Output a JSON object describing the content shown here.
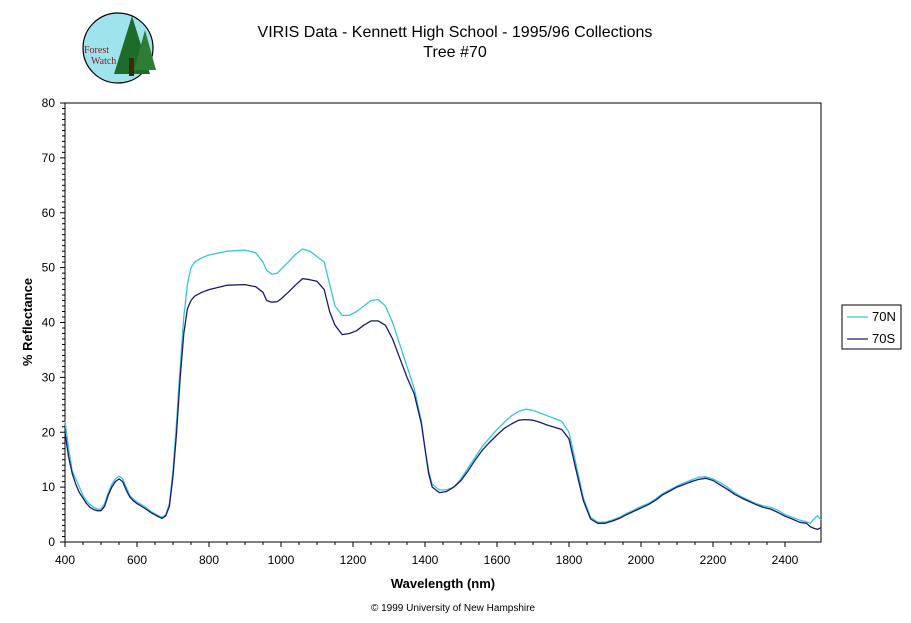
{
  "logo": {
    "line1": "Forest",
    "line2": "Watch"
  },
  "footer": {
    "copyright": "© 1999 University of New Hampshire"
  },
  "chart_data": {
    "type": "line",
    "title": "VIRIS Data - Kennett High School - 1995/96 Collections",
    "subtitle": "Tree #70",
    "xlabel": "Wavelength (nm)",
    "ylabel": "% Reflectance",
    "xlim": [
      400,
      2500
    ],
    "ylim": [
      0,
      80
    ],
    "xticks": [
      400,
      600,
      800,
      1000,
      1200,
      1400,
      1600,
      1800,
      2000,
      2200,
      2400
    ],
    "yticks": [
      0,
      10,
      20,
      30,
      40,
      50,
      60,
      70,
      80
    ],
    "grid": false,
    "legend_position": "right",
    "series": [
      {
        "name": "70N",
        "color": "#33c6d9",
        "points": [
          [
            400,
            22
          ],
          [
            410,
            17
          ],
          [
            420,
            13
          ],
          [
            430,
            11.5
          ],
          [
            440,
            10
          ],
          [
            450,
            8.5
          ],
          [
            460,
            7.5
          ],
          [
            470,
            6.8
          ],
          [
            480,
            6.3
          ],
          [
            490,
            6
          ],
          [
            500,
            6
          ],
          [
            510,
            7
          ],
          [
            520,
            9
          ],
          [
            530,
            10.5
          ],
          [
            540,
            11.5
          ],
          [
            550,
            12
          ],
          [
            560,
            11.5
          ],
          [
            570,
            10
          ],
          [
            580,
            8.5
          ],
          [
            590,
            7.8
          ],
          [
            600,
            7.3
          ],
          [
            620,
            6.5
          ],
          [
            640,
            5.5
          ],
          [
            660,
            4.8
          ],
          [
            670,
            4.5
          ],
          [
            680,
            5
          ],
          [
            690,
            7
          ],
          [
            700,
            13
          ],
          [
            710,
            22
          ],
          [
            720,
            32
          ],
          [
            730,
            41
          ],
          [
            740,
            47
          ],
          [
            750,
            50
          ],
          [
            760,
            51
          ],
          [
            780,
            51.8
          ],
          [
            800,
            52.3
          ],
          [
            850,
            53
          ],
          [
            900,
            53.2
          ],
          [
            930,
            52.7
          ],
          [
            950,
            51
          ],
          [
            960,
            49.5
          ],
          [
            975,
            48.8
          ],
          [
            990,
            49
          ],
          [
            1000,
            49.7
          ],
          [
            1020,
            51
          ],
          [
            1040,
            52.4
          ],
          [
            1060,
            53.4
          ],
          [
            1080,
            53
          ],
          [
            1100,
            52
          ],
          [
            1120,
            51
          ],
          [
            1135,
            47
          ],
          [
            1150,
            43
          ],
          [
            1170,
            41.3
          ],
          [
            1190,
            41.3
          ],
          [
            1210,
            42
          ],
          [
            1230,
            43
          ],
          [
            1250,
            44
          ],
          [
            1270,
            44.2
          ],
          [
            1290,
            43
          ],
          [
            1310,
            40
          ],
          [
            1330,
            36
          ],
          [
            1350,
            32
          ],
          [
            1370,
            28
          ],
          [
            1390,
            22
          ],
          [
            1400,
            17
          ],
          [
            1410,
            13
          ],
          [
            1420,
            10.5
          ],
          [
            1440,
            9.5
          ],
          [
            1460,
            9.5
          ],
          [
            1480,
            10
          ],
          [
            1500,
            11.5
          ],
          [
            1520,
            13.5
          ],
          [
            1540,
            15.5
          ],
          [
            1560,
            17.5
          ],
          [
            1580,
            19
          ],
          [
            1600,
            20.5
          ],
          [
            1620,
            21.8
          ],
          [
            1640,
            23
          ],
          [
            1660,
            23.8
          ],
          [
            1680,
            24.2
          ],
          [
            1700,
            24
          ],
          [
            1720,
            23.5
          ],
          [
            1740,
            23
          ],
          [
            1760,
            22.5
          ],
          [
            1780,
            22
          ],
          [
            1800,
            20
          ],
          [
            1820,
            14
          ],
          [
            1840,
            8
          ],
          [
            1860,
            4.5
          ],
          [
            1880,
            3.6
          ],
          [
            1900,
            3.6
          ],
          [
            1920,
            4
          ],
          [
            1940,
            4.5
          ],
          [
            1960,
            5.2
          ],
          [
            1980,
            5.8
          ],
          [
            2000,
            6.5
          ],
          [
            2020,
            7
          ],
          [
            2040,
            7.8
          ],
          [
            2060,
            8.8
          ],
          [
            2080,
            9.5
          ],
          [
            2100,
            10.2
          ],
          [
            2120,
            10.8
          ],
          [
            2140,
            11.3
          ],
          [
            2160,
            11.8
          ],
          [
            2180,
            11.9
          ],
          [
            2200,
            11.5
          ],
          [
            2220,
            10.8
          ],
          [
            2240,
            10
          ],
          [
            2260,
            9
          ],
          [
            2280,
            8.2
          ],
          [
            2300,
            7.6
          ],
          [
            2320,
            7
          ],
          [
            2340,
            6.6
          ],
          [
            2360,
            6.3
          ],
          [
            2380,
            5.8
          ],
          [
            2400,
            5
          ],
          [
            2420,
            4.5
          ],
          [
            2440,
            4
          ],
          [
            2460,
            3.7
          ],
          [
            2470,
            3.4
          ],
          [
            2480,
            4.2
          ],
          [
            2490,
            4.8
          ],
          [
            2500,
            4
          ]
        ]
      },
      {
        "name": "70S",
        "color": "#1a1a6e",
        "points": [
          [
            400,
            20
          ],
          [
            410,
            15.5
          ],
          [
            420,
            12.5
          ],
          [
            430,
            10.5
          ],
          [
            440,
            9
          ],
          [
            450,
            8
          ],
          [
            460,
            7
          ],
          [
            470,
            6.3
          ],
          [
            480,
            5.9
          ],
          [
            490,
            5.7
          ],
          [
            500,
            5.7
          ],
          [
            510,
            6.5
          ],
          [
            520,
            8.5
          ],
          [
            530,
            10
          ],
          [
            540,
            11
          ],
          [
            550,
            11.5
          ],
          [
            560,
            11
          ],
          [
            570,
            9.5
          ],
          [
            580,
            8.2
          ],
          [
            590,
            7.5
          ],
          [
            600,
            7
          ],
          [
            620,
            6.2
          ],
          [
            640,
            5.3
          ],
          [
            660,
            4.6
          ],
          [
            670,
            4.3
          ],
          [
            680,
            4.8
          ],
          [
            690,
            6.5
          ],
          [
            700,
            12
          ],
          [
            710,
            20
          ],
          [
            720,
            30
          ],
          [
            730,
            38
          ],
          [
            740,
            42.5
          ],
          [
            750,
            44
          ],
          [
            760,
            44.8
          ],
          [
            780,
            45.5
          ],
          [
            800,
            46
          ],
          [
            850,
            46.8
          ],
          [
            900,
            46.9
          ],
          [
            930,
            46.5
          ],
          [
            950,
            45.5
          ],
          [
            960,
            44
          ],
          [
            975,
            43.7
          ],
          [
            990,
            43.8
          ],
          [
            1000,
            44.3
          ],
          [
            1020,
            45.5
          ],
          [
            1040,
            46.8
          ],
          [
            1060,
            48
          ],
          [
            1080,
            47.8
          ],
          [
            1100,
            47.5
          ],
          [
            1120,
            46
          ],
          [
            1135,
            42
          ],
          [
            1150,
            39.5
          ],
          [
            1170,
            37.8
          ],
          [
            1190,
            38
          ],
          [
            1210,
            38.5
          ],
          [
            1230,
            39.5
          ],
          [
            1250,
            40.3
          ],
          [
            1270,
            40.3
          ],
          [
            1290,
            39.5
          ],
          [
            1310,
            37
          ],
          [
            1330,
            33.5
          ],
          [
            1350,
            30
          ],
          [
            1370,
            27
          ],
          [
            1390,
            21.5
          ],
          [
            1400,
            17
          ],
          [
            1410,
            12.5
          ],
          [
            1420,
            10
          ],
          [
            1440,
            9
          ],
          [
            1460,
            9.2
          ],
          [
            1480,
            10
          ],
          [
            1500,
            11.2
          ],
          [
            1520,
            13
          ],
          [
            1540,
            15
          ],
          [
            1560,
            16.8
          ],
          [
            1580,
            18.2
          ],
          [
            1600,
            19.5
          ],
          [
            1620,
            20.7
          ],
          [
            1640,
            21.5
          ],
          [
            1660,
            22.2
          ],
          [
            1680,
            22.3
          ],
          [
            1700,
            22.2
          ],
          [
            1720,
            21.8
          ],
          [
            1740,
            21.3
          ],
          [
            1760,
            20.9
          ],
          [
            1780,
            20.5
          ],
          [
            1800,
            18.8
          ],
          [
            1820,
            13
          ],
          [
            1840,
            7.5
          ],
          [
            1860,
            4.2
          ],
          [
            1880,
            3.4
          ],
          [
            1900,
            3.4
          ],
          [
            1920,
            3.8
          ],
          [
            1940,
            4.3
          ],
          [
            1960,
            5
          ],
          [
            1980,
            5.6
          ],
          [
            2000,
            6.2
          ],
          [
            2020,
            6.8
          ],
          [
            2040,
            7.6
          ],
          [
            2060,
            8.6
          ],
          [
            2080,
            9.3
          ],
          [
            2100,
            10
          ],
          [
            2120,
            10.5
          ],
          [
            2140,
            11
          ],
          [
            2160,
            11.4
          ],
          [
            2180,
            11.6
          ],
          [
            2200,
            11.2
          ],
          [
            2220,
            10.4
          ],
          [
            2240,
            9.6
          ],
          [
            2260,
            8.7
          ],
          [
            2280,
            8
          ],
          [
            2300,
            7.4
          ],
          [
            2320,
            6.8
          ],
          [
            2340,
            6.3
          ],
          [
            2360,
            6
          ],
          [
            2380,
            5.4
          ],
          [
            2400,
            4.7
          ],
          [
            2420,
            4.2
          ],
          [
            2440,
            3.6
          ],
          [
            2460,
            3.4
          ],
          [
            2470,
            2.8
          ],
          [
            2480,
            2.5
          ],
          [
            2490,
            2.3
          ],
          [
            2500,
            2.6
          ]
        ]
      }
    ]
  }
}
